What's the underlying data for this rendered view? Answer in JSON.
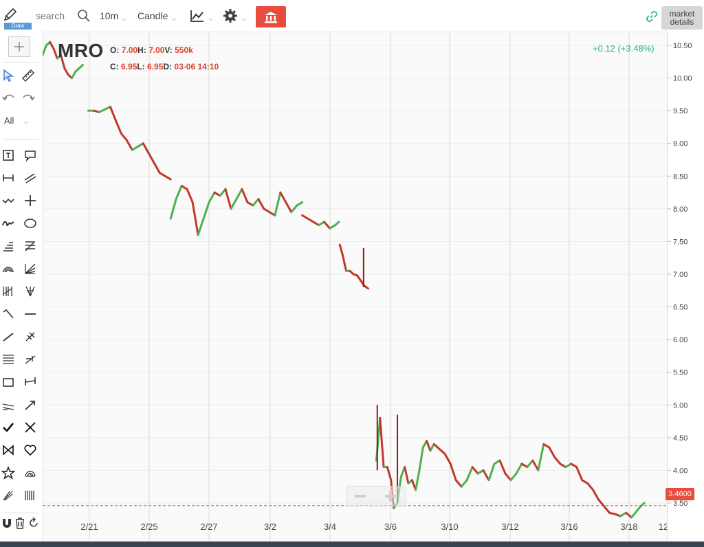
{
  "toolbar": {
    "draw_label": "Draw",
    "search_placeholder": "search",
    "interval": "10m",
    "chart_type": "Candle",
    "market_details": "market details",
    "icons": [
      "pencil-icon",
      "search-icon",
      "indicator-icon",
      "gear-icon",
      "bank-icon",
      "link-icon"
    ]
  },
  "legend": {
    "symbol": "MRO",
    "open_label": "O:",
    "open": "7.00",
    "high_label": "H:",
    "high": "7.00",
    "volume_label": "V:",
    "volume": "550k",
    "close_label": "C:",
    "close": "6.95",
    "low_label": "L:",
    "low": "6.95",
    "date_label": "D:",
    "date": "03-06 14:10",
    "change": "+0.12 (+3.48%)"
  },
  "tools": {
    "all_label": "All"
  },
  "current_price": "3.4600",
  "colors": {
    "up": "#4caf50",
    "down": "#c0392b",
    "accent": "#e74c3c",
    "change": "#2bb389"
  },
  "chart_data": {
    "type": "line",
    "ylim": [
      3.2,
      10.6
    ],
    "y_ticks": [
      "10.50",
      "10.00",
      "9.50",
      "9.00",
      "8.50",
      "8.00",
      "7.50",
      "7.00",
      "6.50",
      "6.00",
      "5.50",
      "5.00",
      "4.50",
      "4.00",
      "3.50"
    ],
    "x_ticks": [
      "2/21",
      "2/25",
      "2/27",
      "3/2",
      "3/4",
      "3/6",
      "3/10",
      "3/12",
      "3/16",
      "3/18",
      "12"
    ],
    "segments": [
      {
        "x": [
          0.0,
          0.2,
          0.4,
          0.6,
          0.8,
          1.0,
          1.2,
          1.4,
          1.6,
          1.8,
          2.0,
          2.2
        ],
        "y": [
          10.35,
          10.5,
          10.55,
          10.45,
          10.3,
          10.35,
          10.15,
          10.05,
          10.0,
          10.1,
          10.15,
          10.2
        ]
      },
      {
        "x": [
          2.5,
          2.8,
          3.1,
          3.4,
          3.7,
          4.0,
          4.3,
          4.6,
          4.9,
          5.2,
          5.5,
          5.8,
          6.1,
          6.4,
          6.7,
          7.0
        ],
        "y": [
          9.5,
          9.5,
          9.48,
          9.52,
          9.56,
          9.35,
          9.15,
          9.05,
          8.9,
          8.95,
          9.0,
          8.85,
          8.7,
          8.55,
          8.5,
          8.45
        ]
      },
      {
        "x": [
          7.0,
          7.3,
          7.6,
          7.9,
          8.2,
          8.5,
          8.8,
          9.1,
          9.4,
          9.7,
          10.0,
          10.3,
          10.6,
          10.9,
          11.2,
          11.5,
          11.8,
          12.1,
          12.4,
          12.7,
          13.0,
          13.3,
          13.6,
          13.9,
          14.2
        ],
        "y": [
          7.85,
          8.15,
          8.35,
          8.3,
          8.1,
          7.6,
          7.85,
          8.1,
          8.25,
          8.2,
          8.3,
          8.0,
          8.15,
          8.3,
          8.1,
          8.05,
          8.15,
          8.0,
          7.95,
          7.9,
          8.25,
          8.1,
          7.95,
          8.05,
          8.1
        ]
      },
      {
        "x": [
          14.2,
          14.5,
          14.8,
          15.1,
          15.4,
          15.7,
          16.0,
          16.2
        ],
        "y": [
          7.9,
          7.85,
          7.8,
          7.75,
          7.8,
          7.7,
          7.75,
          7.8
        ]
      },
      {
        "x": [
          16.25,
          16.4,
          16.6,
          16.8,
          17.0,
          17.2,
          17.4,
          17.6,
          17.8
        ],
        "y": [
          7.45,
          7.3,
          7.05,
          7.05,
          7.0,
          6.98,
          6.9,
          6.82,
          6.78
        ]
      },
      {
        "x": [
          18.25,
          18.45,
          18.65,
          18.85,
          19.05,
          19.2,
          19.4,
          19.6,
          19.8,
          20.0,
          20.2,
          20.4,
          20.6,
          20.8,
          21.0,
          21.2,
          21.4,
          21.6,
          21.8,
          22.0,
          22.3,
          22.6,
          22.9,
          23.2,
          23.5,
          23.8,
          24.1,
          24.4,
          24.7,
          25.0,
          25.3,
          25.6,
          25.9,
          26.2,
          26.5,
          26.8,
          27.1,
          27.4,
          27.7,
          28.0,
          28.3,
          28.6,
          28.9,
          29.2,
          29.5,
          29.8,
          30.1,
          30.4,
          30.7,
          31.0,
          31.3,
          31.6,
          31.9,
          32.2,
          32.5,
          32.7,
          32.9
        ],
        "y": [
          4.15,
          4.8,
          4.05,
          4.05,
          3.85,
          3.42,
          3.5,
          3.9,
          4.05,
          3.8,
          3.85,
          3.7,
          4.0,
          4.35,
          4.45,
          4.3,
          4.4,
          4.35,
          4.3,
          4.25,
          4.1,
          3.85,
          3.75,
          3.85,
          4.05,
          3.95,
          4.0,
          3.85,
          4.1,
          4.15,
          3.95,
          3.85,
          3.95,
          4.1,
          4.05,
          4.15,
          4.0,
          4.4,
          4.35,
          4.2,
          4.1,
          4.05,
          4.1,
          4.05,
          3.85,
          3.8,
          3.7,
          3.55,
          3.45,
          3.35,
          3.33,
          3.3,
          3.35,
          3.28,
          3.38,
          3.45,
          3.5
        ]
      }
    ],
    "spikes": [
      {
        "x": 17.55,
        "high": 7.4,
        "low": 6.8
      },
      {
        "x": 18.3,
        "high": 5.0,
        "low": 4.0
      },
      {
        "x": 19.4,
        "high": 4.85,
        "low": 3.5
      }
    ],
    "current_value": 3.46
  }
}
